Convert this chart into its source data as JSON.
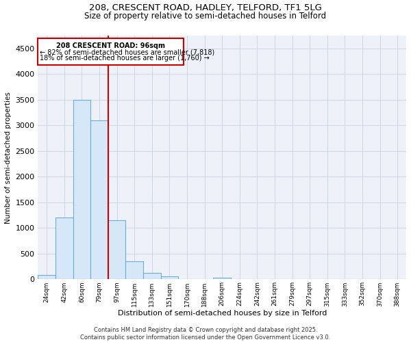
{
  "title_line1": "208, CRESCENT ROAD, HADLEY, TELFORD, TF1 5LG",
  "title_line2": "Size of property relative to semi-detached houses in Telford",
  "xlabel": "Distribution of semi-detached houses by size in Telford",
  "ylabel": "Number of semi-detached properties",
  "categories": [
    "24sqm",
    "42sqm",
    "60sqm",
    "79sqm",
    "97sqm",
    "115sqm",
    "133sqm",
    "151sqm",
    "170sqm",
    "188sqm",
    "206sqm",
    "224sqm",
    "242sqm",
    "261sqm",
    "279sqm",
    "297sqm",
    "315sqm",
    "333sqm",
    "352sqm",
    "370sqm",
    "388sqm"
  ],
  "values": [
    90,
    1200,
    3500,
    3100,
    1150,
    350,
    120,
    60,
    0,
    0,
    30,
    0,
    0,
    0,
    0,
    0,
    0,
    0,
    0,
    0,
    0
  ],
  "bar_color": "#d6e8f7",
  "bar_edge_color": "#6aaed6",
  "annotation_text_line1": "208 CRESCENT ROAD: 96sqm",
  "annotation_text_line2": "← 82% of semi-detached houses are smaller (7,818)",
  "annotation_text_line3": "18% of semi-detached houses are larger (1,760) →",
  "red_line_x": 3.5,
  "ylim": [
    0,
    4750
  ],
  "yticks": [
    0,
    500,
    1000,
    1500,
    2000,
    2500,
    3000,
    3500,
    4000,
    4500
  ],
  "annotation_box_color": "#cc0000",
  "footer_line1": "Contains HM Land Registry data © Crown copyright and database right 2025.",
  "footer_line2": "Contains public sector information licensed under the Open Government Licence v3.0.",
  "grid_color": "#d0d8e8",
  "bg_color": "#eef2f8"
}
